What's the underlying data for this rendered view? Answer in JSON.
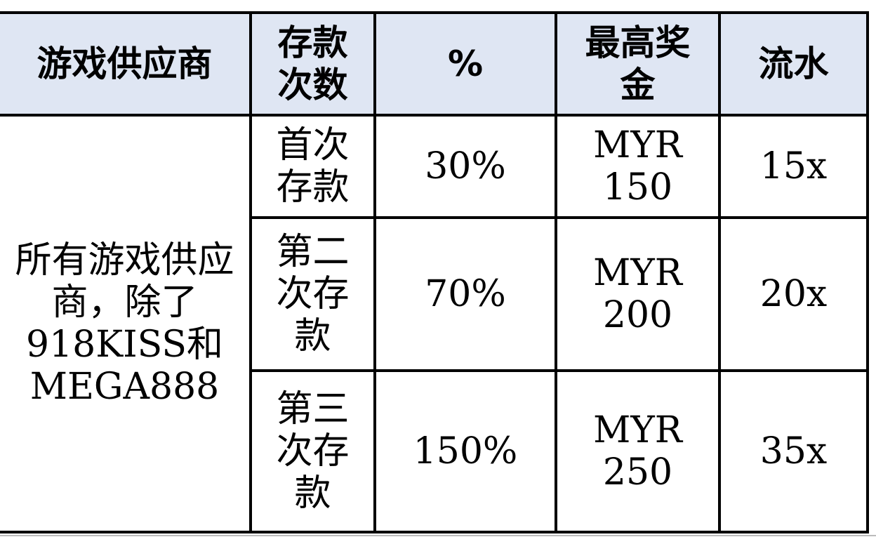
{
  "header": [
    "游戏供应商",
    "存款次数",
    "%",
    "最高奖金",
    "流水"
  ],
  "provider": "所有游戏供应商，除了918KISS和MEGA888",
  "rows": [
    {
      "deposit": "首次存款",
      "percent": "30%",
      "max_bonus": "MYR 150",
      "turnover": "15x"
    },
    {
      "deposit": "第二次存款",
      "percent": "70%",
      "max_bonus": "MYR 200",
      "turnover": "20x"
    },
    {
      "deposit": "第三次存款",
      "percent": "150%",
      "max_bonus": "MYR 250",
      "turnover": "35x"
    }
  ],
  "colors": {
    "header_bg": "#dfe6f3",
    "border": "#000000"
  }
}
